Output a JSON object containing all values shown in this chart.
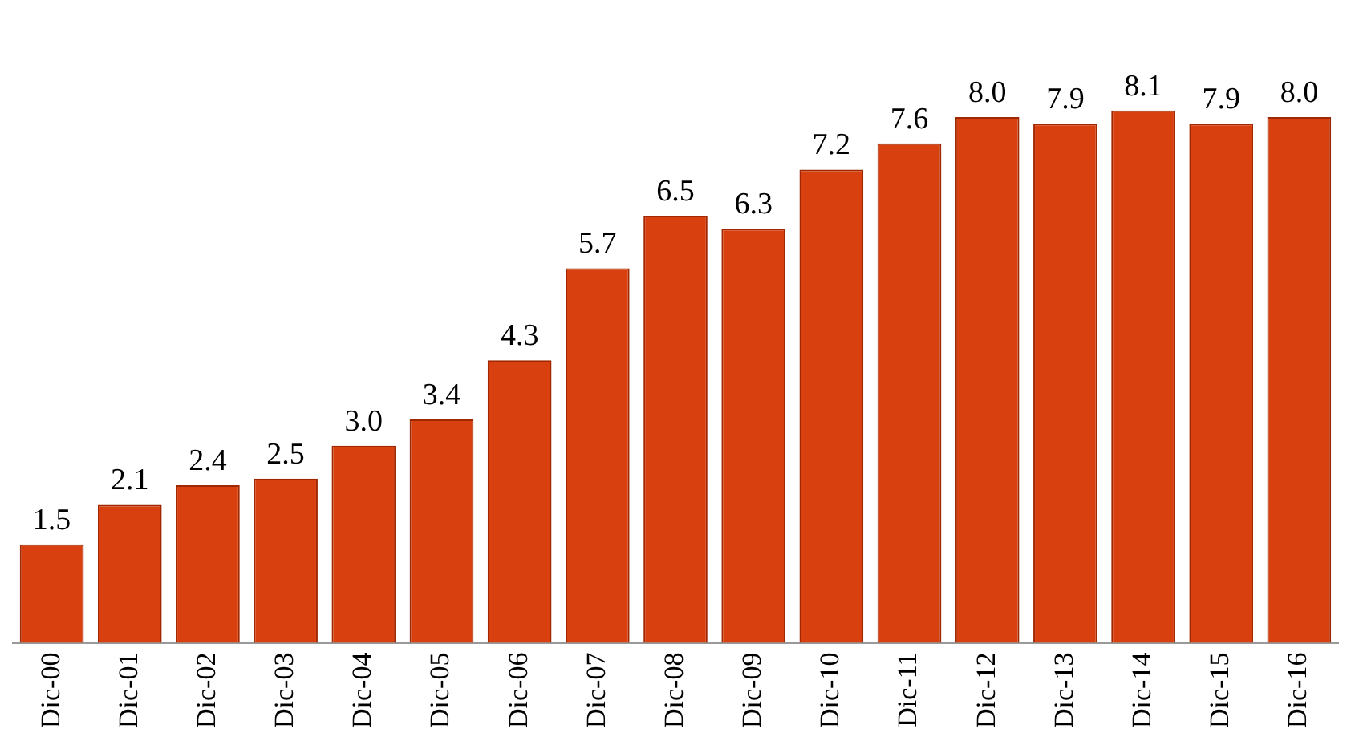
{
  "chart_data": {
    "type": "bar",
    "categories": [
      "Dic-00",
      "Dic-01",
      "Dic-02",
      "Dic-03",
      "Dic-04",
      "Dic-05",
      "Dic-06",
      "Dic-07",
      "Dic-08",
      "Dic-09",
      "Dic-10",
      "Dic-11",
      "Dic-12",
      "Dic-13",
      "Dic-14",
      "Dic-15",
      "Dic-16"
    ],
    "values": [
      1.5,
      2.1,
      2.4,
      2.5,
      3.0,
      3.4,
      4.3,
      5.7,
      6.5,
      6.3,
      7.2,
      7.6,
      8.0,
      7.9,
      8.1,
      7.9,
      8.0
    ],
    "value_labels": [
      "1.5",
      "2.1",
      "2.4",
      "2.5",
      "3.0",
      "3.4",
      "4.3",
      "5.7",
      "6.5",
      "6.3",
      "7.2",
      "7.6",
      "8.0",
      "7.9",
      "8.1",
      "7.9",
      "8.0"
    ],
    "color": "#d9400f",
    "grid": false,
    "legend": false,
    "tick_labels": "x"
  }
}
